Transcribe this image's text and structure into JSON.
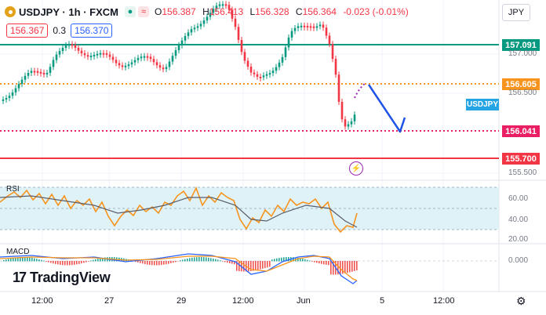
{
  "header": {
    "symbol": "USDJPY",
    "sep1": "·",
    "timeframe": "1h",
    "sep2": "·",
    "source": "FXCM",
    "open_label": "O",
    "open": "156.387",
    "high_label": "H",
    "high": "156.413",
    "low_label": "L",
    "low": "156.328",
    "close_label": "C",
    "close": "156.364",
    "change": "-0.023 (-0.01%)"
  },
  "trade": {
    "sell": "156.367",
    "spread": "0.3",
    "buy": "156.370"
  },
  "currency": "JPY",
  "price_labels": [
    {
      "value": "157.091",
      "color": "#089981"
    },
    {
      "value": "156.605",
      "color": "#f7941d"
    },
    {
      "value": "156.041",
      "color": "#e91e63"
    },
    {
      "value": "155.700",
      "color": "#f23645"
    }
  ],
  "price_axis": [
    "157.000",
    "156.500",
    "155.500"
  ],
  "symbol_tag": "USDJPY",
  "rsi": {
    "label": "RSI",
    "levels": [
      "60.00",
      "40.00",
      "20.00"
    ]
  },
  "macd": {
    "label": "MACD",
    "level": "0.000"
  },
  "logo": {
    "mark": "17",
    "text": "TradingView"
  },
  "time_axis": [
    "12:00",
    "27",
    "29",
    "12:00",
    "Jun",
    "5",
    "12:00"
  ],
  "colors": {
    "up": "#089981",
    "down": "#f23645",
    "rsi": "#f7941d",
    "rsi_band": "#dff2f8"
  },
  "icons": {
    "flash": "flash-icon",
    "settings": "settings-icon"
  }
}
